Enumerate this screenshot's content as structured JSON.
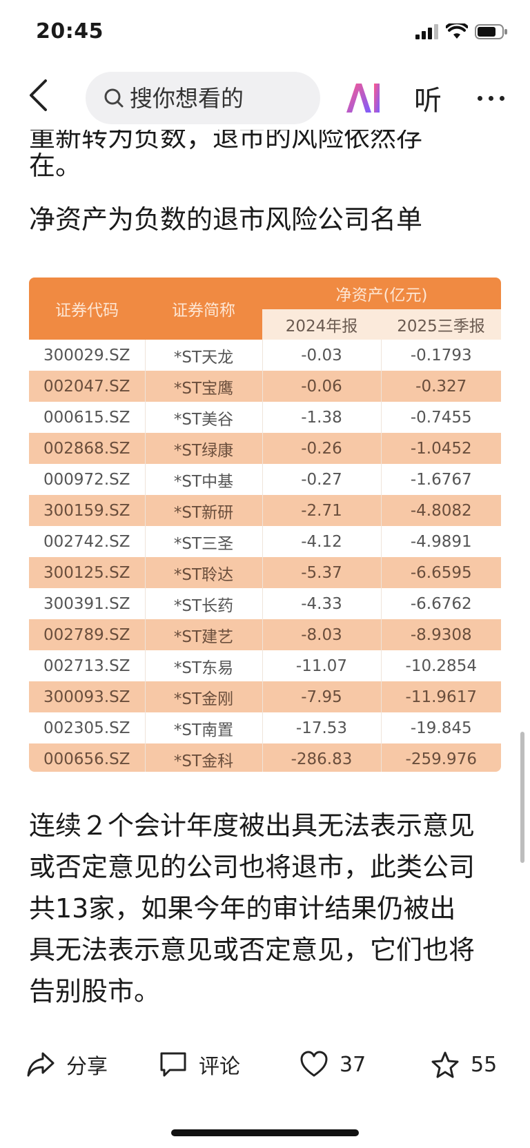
{
  "status": {
    "time": "20:45"
  },
  "top_bar": {
    "search_placeholder": "搜你想看的",
    "ai_label": "AI",
    "listen_label": "听"
  },
  "article": {
    "cut_line": "重新转为负数，退市的风险依然存",
    "para1_tail": "在。",
    "heading": "净资产为负数的退市风险公司名单",
    "para2": "连续２个会计年度被出具无法表示意见或否定意见的公司也将退市，此类公司共13家，如果今年的审计结果仍被出具无法表示意见或否定意见，它们也将告别股市。"
  },
  "table": {
    "col_code": "证券代码",
    "col_name": "证券简称",
    "col_group": "净资产(亿元)",
    "col_2024": "2024年报",
    "col_2025": "2025三季报",
    "rows": [
      {
        "code": "300029.SZ",
        "name": "*ST天龙",
        "v2024": "-0.03",
        "v2025": "-0.1793"
      },
      {
        "code": "002047.SZ",
        "name": "*ST宝鹰",
        "v2024": "-0.06",
        "v2025": "-0.327"
      },
      {
        "code": "000615.SZ",
        "name": "*ST美谷",
        "v2024": "-1.38",
        "v2025": "-0.7455"
      },
      {
        "code": "002868.SZ",
        "name": "*ST绿康",
        "v2024": "-0.26",
        "v2025": "-1.0452"
      },
      {
        "code": "000972.SZ",
        "name": "*ST中基",
        "v2024": "-0.27",
        "v2025": "-1.6767"
      },
      {
        "code": "300159.SZ",
        "name": "*ST新研",
        "v2024": "-2.71",
        "v2025": "-4.8082"
      },
      {
        "code": "002742.SZ",
        "name": "*ST三圣",
        "v2024": "-4.12",
        "v2025": "-4.9891"
      },
      {
        "code": "300125.SZ",
        "name": "*ST聆达",
        "v2024": "-5.37",
        "v2025": "-6.6595"
      },
      {
        "code": "300391.SZ",
        "name": "*ST长药",
        "v2024": "-4.33",
        "v2025": "-6.6762"
      },
      {
        "code": "002789.SZ",
        "name": "*ST建艺",
        "v2024": "-8.03",
        "v2025": "-8.9308"
      },
      {
        "code": "002713.SZ",
        "name": "*ST东易",
        "v2024": "-11.07",
        "v2025": "-10.2854"
      },
      {
        "code": "300093.SZ",
        "name": "*ST金刚",
        "v2024": "-7.95",
        "v2025": "-11.9617"
      },
      {
        "code": "002305.SZ",
        "name": "*ST南置",
        "v2024": "-17.53",
        "v2025": "-19.845"
      },
      {
        "code": "000656.SZ",
        "name": "*ST金科",
        "v2024": "-286.83",
        "v2025": "-259.976"
      }
    ]
  },
  "actions": {
    "share_label": "分享",
    "comment_label": "评论",
    "like_count": "37",
    "favorite_count": "55"
  },
  "colors": {
    "table_header": "#f08a42",
    "row_alt": "#f7c8a6",
    "ai_gradient_start": "#ff5a8a",
    "ai_gradient_end": "#7a5cff"
  }
}
